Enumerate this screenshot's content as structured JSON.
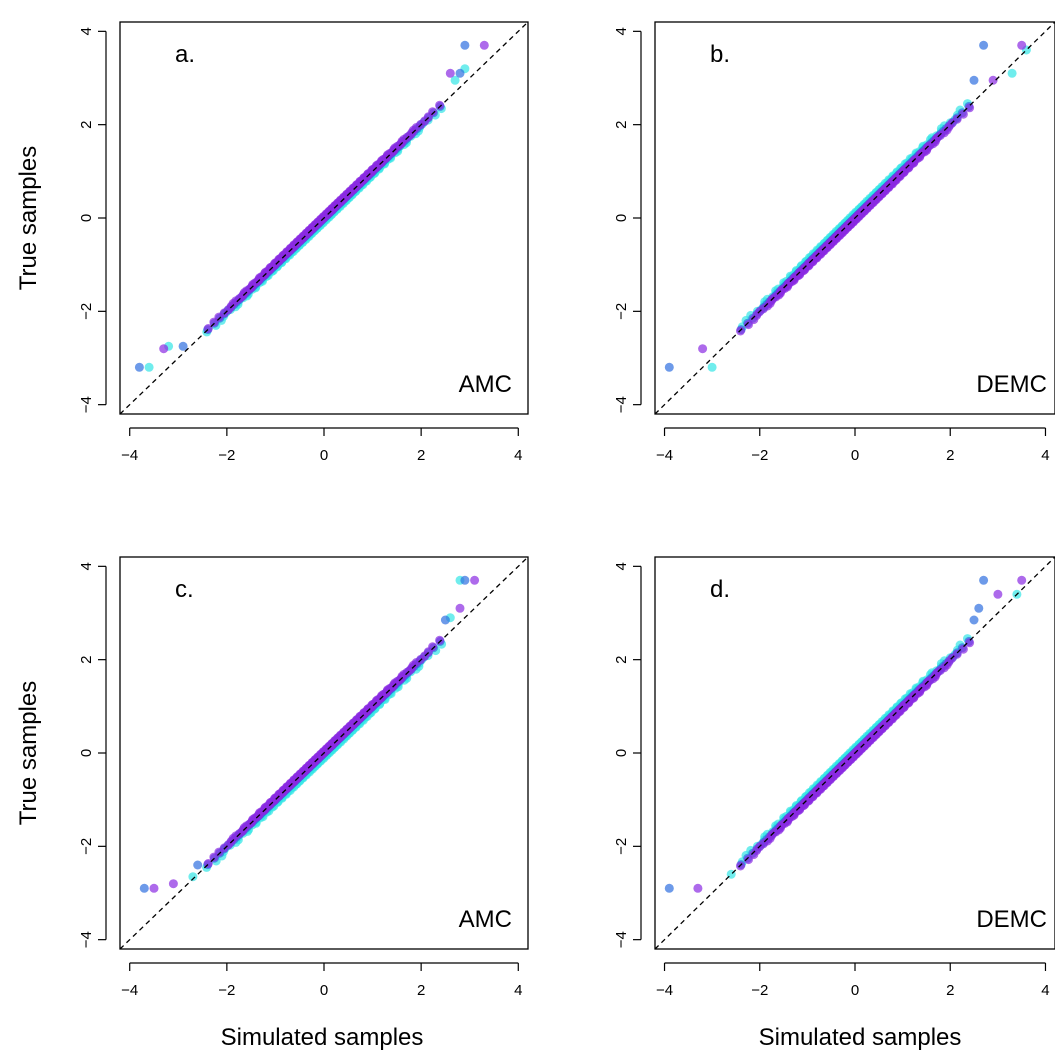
{
  "chart_data": [
    {
      "type": "scatter",
      "panel_label": "a.",
      "method_label": "AMC",
      "xlabel": "",
      "ylabel": "True samples",
      "xlim": [
        -4.2,
        4.2
      ],
      "ylim": [
        -4.2,
        4.2
      ],
      "x_ticks": [
        "−4",
        "−2",
        "0",
        "2",
        "4"
      ],
      "y_ticks": [
        "−4",
        "−2",
        "0",
        "2",
        "4"
      ],
      "reference_line": {
        "style": "dashed",
        "slope": 1,
        "intercept": 0
      },
      "series": [
        {
          "color": "#33e6e6",
          "x_range": [
            -3.6,
            2.9
          ],
          "bias": -0.08,
          "outliers": [
            [
              -3.6,
              -3.2
            ],
            [
              -3.2,
              -2.75
            ],
            [
              2.7,
              2.95
            ],
            [
              2.9,
              3.2
            ]
          ]
        },
        {
          "color": "#2f6fe0",
          "x_range": [
            -3.8,
            2.9
          ],
          "bias": 0.0,
          "outliers": [
            [
              -3.8,
              -3.2
            ],
            [
              -2.9,
              -2.75
            ],
            [
              2.8,
              3.1
            ],
            [
              2.9,
              3.7
            ]
          ]
        },
        {
          "color": "#8a2be2",
          "x_range": [
            -3.3,
            3.3
          ],
          "bias": 0.04,
          "outliers": [
            [
              -3.3,
              -2.8
            ],
            [
              2.6,
              3.1
            ],
            [
              3.3,
              3.7
            ]
          ]
        }
      ]
    },
    {
      "type": "scatter",
      "panel_label": "b.",
      "method_label": "DEMC",
      "xlabel": "",
      "ylabel": "",
      "xlim": [
        -4.2,
        4.2
      ],
      "ylim": [
        -4.2,
        4.2
      ],
      "x_ticks": [
        "−4",
        "−2",
        "0",
        "2",
        "4"
      ],
      "y_ticks": [
        "−4",
        "−2",
        "0",
        "2",
        "4"
      ],
      "reference_line": {
        "style": "dashed",
        "slope": 1,
        "intercept": 0
      },
      "series": [
        {
          "color": "#33e6e6",
          "x_range": [
            -3.2,
            3.6
          ],
          "bias": 0.1,
          "outliers": [
            [
              -3.0,
              -3.2
            ],
            [
              3.6,
              3.6
            ],
            [
              3.3,
              3.1
            ]
          ]
        },
        {
          "color": "#2f6fe0",
          "x_range": [
            -3.9,
            2.8
          ],
          "bias": 0.0,
          "outliers": [
            [
              -3.9,
              -3.2
            ],
            [
              2.7,
              3.7
            ],
            [
              2.5,
              2.95
            ]
          ]
        },
        {
          "color": "#8a2be2",
          "x_range": [
            -3.2,
            3.5
          ],
          "bias": -0.05,
          "outliers": [
            [
              -3.2,
              -2.8
            ],
            [
              2.9,
              2.95
            ],
            [
              3.5,
              3.7
            ]
          ]
        }
      ]
    },
    {
      "type": "scatter",
      "panel_label": "c.",
      "method_label": "AMC",
      "xlabel": "Simulated samples",
      "ylabel": "True samples",
      "xlim": [
        -4.2,
        4.2
      ],
      "ylim": [
        -4.2,
        4.2
      ],
      "x_ticks": [
        "−4",
        "−2",
        "0",
        "2",
        "4"
      ],
      "y_ticks": [
        "−4",
        "−2",
        "0",
        "2",
        "4"
      ],
      "reference_line": {
        "style": "dashed",
        "slope": 1,
        "intercept": 0
      },
      "series": [
        {
          "color": "#33e6e6",
          "x_range": [
            -3.0,
            2.8
          ],
          "bias": -0.1,
          "outliers": [
            [
              -2.7,
              -2.65
            ],
            [
              2.6,
              2.9
            ],
            [
              2.8,
              3.7
            ]
          ]
        },
        {
          "color": "#2f6fe0",
          "x_range": [
            -3.7,
            2.9
          ],
          "bias": 0.0,
          "outliers": [
            [
              -3.7,
              -2.9
            ],
            [
              -2.6,
              -2.4
            ],
            [
              2.5,
              2.85
            ],
            [
              2.9,
              3.7
            ]
          ]
        },
        {
          "color": "#8a2be2",
          "x_range": [
            -3.5,
            3.1
          ],
          "bias": 0.04,
          "outliers": [
            [
              -3.5,
              -2.9
            ],
            [
              -3.1,
              -2.8
            ],
            [
              2.8,
              3.1
            ],
            [
              3.1,
              3.7
            ]
          ]
        }
      ]
    },
    {
      "type": "scatter",
      "panel_label": "d.",
      "method_label": "DEMC",
      "xlabel": "Simulated samples",
      "ylabel": "",
      "xlim": [
        -4.2,
        4.2
      ],
      "ylim": [
        -4.2,
        4.2
      ],
      "x_ticks": [
        "−4",
        "−2",
        "0",
        "2",
        "4"
      ],
      "y_ticks": [
        "−4",
        "−2",
        "0",
        "2",
        "4"
      ],
      "reference_line": {
        "style": "dashed",
        "slope": 1,
        "intercept": 0
      },
      "series": [
        {
          "color": "#33e6e6",
          "x_range": [
            -2.6,
            3.4
          ],
          "bias": 0.1,
          "outliers": [
            [
              -2.6,
              -2.6
            ],
            [
              3.4,
              3.4
            ]
          ]
        },
        {
          "color": "#2f6fe0",
          "x_range": [
            -3.9,
            2.8
          ],
          "bias": 0.0,
          "outliers": [
            [
              -3.9,
              -2.9
            ],
            [
              2.7,
              3.7
            ],
            [
              2.6,
              3.1
            ],
            [
              2.5,
              2.85
            ]
          ]
        },
        {
          "color": "#8a2be2",
          "x_range": [
            -3.3,
            3.5
          ],
          "bias": -0.05,
          "outliers": [
            [
              -3.3,
              -2.9
            ],
            [
              3.0,
              3.4
            ],
            [
              3.5,
              3.7
            ]
          ]
        }
      ]
    }
  ]
}
